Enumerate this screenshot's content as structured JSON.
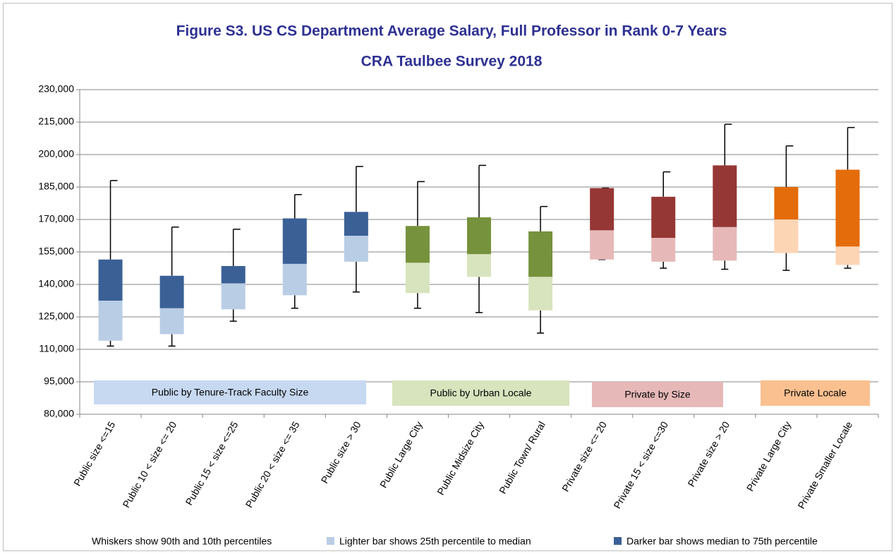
{
  "chart_data": {
    "type": "box",
    "title": "Figure S3. US CS Department Average Salary, Full Professor in Rank 0-7 Years",
    "subtitle": "CRA Taulbee Survey 2018",
    "categories": [
      "Public size <=15",
      "Public 10 < size <= 20",
      "Public 15 < size <=25",
      "Public 20 < size <= 35",
      "Public size > 30",
      "Public Large City",
      "Public Midsize City",
      "Public Town/ Rural",
      "Private size <= 20",
      "Private 15 < size <=30",
      "Private size > 20",
      "Private Large City",
      "Private Smaller Locale"
    ],
    "p90": [
      188000,
      166500,
      165500,
      181500,
      194500,
      187500,
      195000,
      176000,
      184500,
      192000,
      214000,
      204000,
      212500
    ],
    "p75": [
      151500,
      144000,
      148500,
      170500,
      173500,
      167000,
      171000,
      164500,
      184500,
      180500,
      195000,
      185000,
      193000
    ],
    "median": [
      132500,
      129000,
      140500,
      149500,
      162500,
      150000,
      154000,
      143500,
      165000,
      161500,
      166500,
      170000,
      157500
    ],
    "p25": [
      114000,
      117000,
      128500,
      135000,
      150500,
      136000,
      143500,
      128000,
      151500,
      150500,
      151000,
      154500,
      149000
    ],
    "p10": [
      111500,
      111500,
      123000,
      129000,
      136500,
      129000,
      127000,
      117500,
      151500,
      147500,
      147000,
      146500,
      147500
    ],
    "dark_colors": [
      "#3a6096",
      "#3a6096",
      "#3a6096",
      "#3a6096",
      "#3a6096",
      "#76923c",
      "#76923c",
      "#76923c",
      "#953735",
      "#953735",
      "#953735",
      "#e46c0a",
      "#e46c0a"
    ],
    "light_colors": [
      "#b9cde5",
      "#b9cde5",
      "#b9cde5",
      "#b9cde5",
      "#b9cde5",
      "#d7e4bd",
      "#d7e4bd",
      "#d7e4bd",
      "#e6b9b8",
      "#e6b9b8",
      "#e6b9b8",
      "#fcd5b5",
      "#fcd5b5"
    ],
    "groups": [
      {
        "label": "Public by Tenure-Track Faculty Size",
        "color": "#c6d9f1"
      },
      {
        "label": "Public by Urban Locale",
        "color": "#d7e4bd"
      },
      {
        "label": "Private by Size",
        "color": "#e6b9b8"
      },
      {
        "label": "Private Locale",
        "color": "#fac090"
      }
    ],
    "ylim": [
      80000,
      230000
    ],
    "yticks": [
      {
        "value": 80000,
        "label": "80,000"
      },
      {
        "value": 95000,
        "label": "95,000"
      },
      {
        "value": 110000,
        "label": "110,000"
      },
      {
        "value": 125000,
        "label": "125,000"
      },
      {
        "value": 140000,
        "label": "140,000"
      },
      {
        "value": 155000,
        "label": "155,000"
      },
      {
        "value": 170000,
        "label": "170,000"
      },
      {
        "value": 185000,
        "label": "185,000"
      },
      {
        "value": 200000,
        "label": "200,000"
      },
      {
        "value": 215000,
        "label": "215,000"
      },
      {
        "value": 230000,
        "label": "230,000"
      }
    ],
    "grid": true,
    "legend": [
      {
        "label": "Whiskers show 90th and 10th percentiles"
      },
      {
        "label": "Lighter bar shows 25th percentile to median",
        "color": "#b9cde5"
      },
      {
        "label": "Darker bar shows median to 75th percentile",
        "color": "#3a6096"
      }
    ]
  }
}
